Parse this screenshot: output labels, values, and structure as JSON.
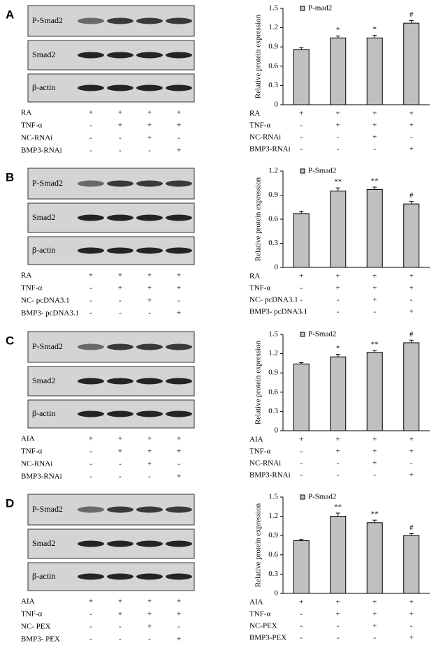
{
  "chart_data": [
    {
      "type": "bar",
      "label": "A",
      "legend": "P-mad2",
      "ylabel": "Relative protein expression",
      "ylim": [
        0,
        1.5
      ],
      "yticks": [
        0,
        0.3,
        0.6,
        0.9,
        1.2,
        1.5
      ],
      "values": [
        0.86,
        1.04,
        1.04,
        1.27
      ],
      "errors": [
        0.03,
        0.03,
        0.04,
        0.04
      ],
      "annotations": [
        null,
        "*",
        "*",
        "#"
      ],
      "color": "#c0c0c0",
      "conditions": [
        {
          "name": "RA",
          "signs": [
            "+",
            "+",
            "+",
            "+"
          ]
        },
        {
          "name": "TNF-α",
          "signs": [
            "-",
            "+",
            "+",
            "+"
          ]
        },
        {
          "name": "NC-RNAi",
          "signs": [
            "-",
            "-",
            "+",
            "-"
          ]
        },
        {
          "name": "BMP3-RNAi",
          "signs": [
            "-",
            "-",
            "-",
            "+"
          ]
        }
      ]
    },
    {
      "type": "bar",
      "label": "B",
      "legend": "P-Smad2",
      "ylabel": "Relative protein expression",
      "ylim": [
        0,
        1.2
      ],
      "yticks": [
        0,
        0.3,
        0.6,
        0.9,
        1.2
      ],
      "values": [
        0.67,
        0.95,
        0.97,
        0.79
      ],
      "errors": [
        0.03,
        0.04,
        0.03,
        0.03
      ],
      "annotations": [
        null,
        "**",
        "**",
        "#"
      ],
      "color": "#c0c0c0",
      "conditions": [
        {
          "name": "RA",
          "signs": [
            "+",
            "+",
            "+",
            "+"
          ]
        },
        {
          "name": "TNF-α",
          "signs": [
            "-",
            "+",
            "+",
            "+"
          ]
        },
        {
          "name": "NC- pcDNA3.1",
          "signs": [
            "-",
            "-",
            "+",
            "-"
          ]
        },
        {
          "name": "BMP3- pcDNA3.1",
          "signs": [
            "-",
            "-",
            "-",
            "+"
          ]
        }
      ]
    },
    {
      "type": "bar",
      "label": "C",
      "legend": "P-Smad2",
      "ylabel": "Relative protein expression",
      "ylim": [
        0,
        1.5
      ],
      "yticks": [
        0,
        0.3,
        0.6,
        0.9,
        1.2,
        1.5
      ],
      "values": [
        1.04,
        1.15,
        1.22,
        1.37
      ],
      "errors": [
        0.02,
        0.04,
        0.03,
        0.04
      ],
      "annotations": [
        null,
        "*",
        "**",
        "#"
      ],
      "color": "#c0c0c0",
      "conditions": [
        {
          "name": "AIA",
          "signs": [
            "+",
            "+",
            "+",
            "+"
          ]
        },
        {
          "name": "TNF-α",
          "signs": [
            "-",
            "+",
            "+",
            "+"
          ]
        },
        {
          "name": "NC-RNAi",
          "signs": [
            "-",
            "-",
            "+",
            "-"
          ]
        },
        {
          "name": "BMP3-RNAi",
          "signs": [
            "-",
            "-",
            "-",
            "+"
          ]
        }
      ]
    },
    {
      "type": "bar",
      "label": "D",
      "legend": "P-Smad2",
      "ylabel": "Relative protein expression",
      "ylim": [
        0,
        1.5
      ],
      "yticks": [
        0,
        0.3,
        0.6,
        0.9,
        1.2,
        1.5
      ],
      "values": [
        0.82,
        1.2,
        1.1,
        0.9
      ],
      "errors": [
        0.02,
        0.05,
        0.04,
        0.03
      ],
      "annotations": [
        null,
        "**",
        "**",
        "#"
      ],
      "color": "#c0c0c0",
      "conditions": [
        {
          "name": "AIA",
          "signs": [
            "+",
            "+",
            "+",
            "+"
          ]
        },
        {
          "name": "TNF-α",
          "signs": [
            "-",
            "+",
            "+",
            "+"
          ]
        },
        {
          "name": "NC-PEX",
          "signs": [
            "-",
            "-",
            "+",
            "-"
          ]
        },
        {
          "name": "BMP3-PEX",
          "signs": [
            "-",
            "-",
            "-",
            "+"
          ]
        }
      ]
    }
  ],
  "blots": [
    {
      "bands": [
        "P-Smad2",
        "Smad2",
        "β-actin"
      ],
      "conditions": [
        "RA",
        "TNF-α",
        "NC-RNAi",
        "BMP3-RNAi"
      ]
    },
    {
      "bands": [
        "P-Smad2",
        "Smad2",
        "β-actin"
      ],
      "conditions": [
        "RA",
        "TNF-α",
        "NC- pcDNA3.1",
        "BMP3- pcDNA3.1"
      ]
    },
    {
      "bands": [
        "P-Smad2",
        "Smad2",
        "β-actin"
      ],
      "conditions": [
        "AIA",
        "TNF-α",
        "NC-RNAi",
        "BMP3-RNAi"
      ]
    },
    {
      "bands": [
        "P-Smad2",
        "Smad2",
        "β-actin"
      ],
      "conditions": [
        "AIA",
        "TNF-α",
        "NC- PEX",
        "BMP3- PEX"
      ]
    }
  ]
}
